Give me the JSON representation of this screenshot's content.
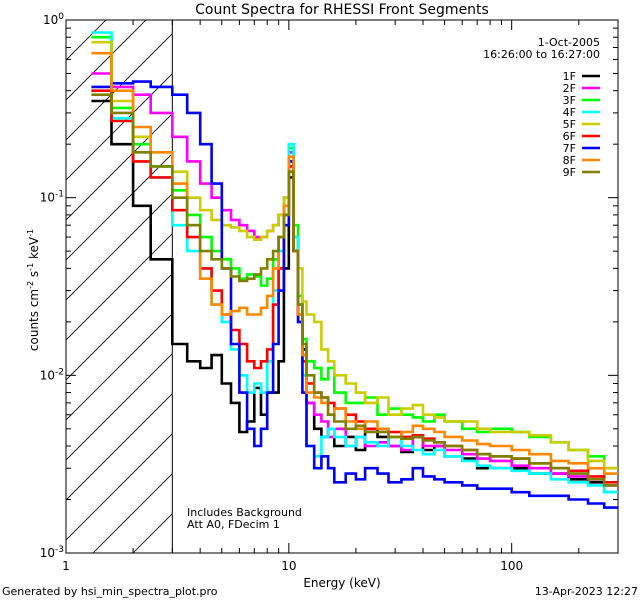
{
  "chart_data": {
    "type": "line",
    "title": "Count Spectra for RHESSI Front Segments",
    "xlabel": "Energy (keV)",
    "ylabel": {
      "base": "counts cm",
      "exp1": "-2",
      "mid1": " s",
      "exp2": "-1",
      "mid2": " keV",
      "exp3": "-1"
    },
    "x_scale": "log",
    "y_scale": "log",
    "xlim": [
      1.0,
      300
    ],
    "ylim": [
      0.001,
      1.0
    ],
    "x_tick_labels": [
      {
        "value": 1,
        "label": "1"
      },
      {
        "value": 10,
        "label": "10"
      },
      {
        "value": 100,
        "label": "100"
      }
    ],
    "y_tick_labels": [
      {
        "value": 1,
        "base": "10",
        "exp": "0"
      },
      {
        "value": 0.1,
        "base": "10",
        "exp": "-1"
      },
      {
        "value": 0.01,
        "base": "10",
        "exp": "-2"
      },
      {
        "value": 0.001,
        "base": "10",
        "exp": "-3"
      }
    ],
    "attenuator_cutoff_keV": 3.0,
    "legend_position": "top-right",
    "legend_header": [
      "1-Oct-2005",
      "16:26:00 to 16:27:00"
    ],
    "annotations": [
      "Includes Background",
      "Att A0, FDecim 1"
    ],
    "footer_left": "Generated by hsi_min_spectra_plot.pro",
    "footer_right": "13-Apr-2023 12:27",
    "bin_edges_keV": [
      1.3,
      1.6,
      2.0,
      2.4,
      3.0,
      3.5,
      4.0,
      4.5,
      5.0,
      5.5,
      6.0,
      6.5,
      7.0,
      7.5,
      8.0,
      8.5,
      9.0,
      9.5,
      10.0,
      10.5,
      11.0,
      11.5,
      12.0,
      13.0,
      14.0,
      15.0,
      16.0,
      18.0,
      20.0,
      22.0,
      25.0,
      28.0,
      32.0,
      36.0,
      40.0,
      45.0,
      50.0,
      60.0,
      70.0,
      80.0,
      100.0,
      120.0,
      150.0,
      180.0,
      220.0,
      260.0,
      300.0
    ],
    "series": [
      {
        "name": "1F",
        "color": "#000000",
        "values": [
          0.35,
          0.2,
          0.09,
          0.045,
          0.015,
          0.012,
          0.011,
          0.013,
          0.009,
          0.007,
          0.0048,
          0.0055,
          0.0085,
          0.006,
          0.008,
          0.008,
          0.012,
          0.04,
          0.13,
          0.05,
          0.022,
          0.014,
          0.007,
          0.005,
          0.0045,
          0.005,
          0.004,
          0.0045,
          0.0038,
          0.005,
          0.0045,
          0.004,
          0.0037,
          0.0045,
          0.0038,
          0.004,
          0.0035,
          0.0034,
          0.003,
          0.003,
          0.003,
          0.0028,
          0.0028,
          0.0026,
          0.0025,
          0.0022
        ]
      },
      {
        "name": "2F",
        "color": "#ff00ff",
        "values": [
          0.5,
          0.42,
          0.38,
          0.3,
          0.22,
          0.16,
          0.12,
          0.1,
          0.085,
          0.075,
          0.07,
          0.065,
          0.06,
          0.06,
          0.065,
          0.07,
          0.08,
          0.1,
          0.18,
          0.06,
          0.025,
          0.013,
          0.007,
          0.006,
          0.0055,
          0.0045,
          0.005,
          0.004,
          0.0045,
          0.004,
          0.0042,
          0.004,
          0.0038,
          0.0045,
          0.004,
          0.004,
          0.0038,
          0.0036,
          0.0034,
          0.0033,
          0.0031,
          0.003,
          0.0028,
          0.0027,
          0.0026,
          0.0024
        ]
      },
      {
        "name": "3F",
        "color": "#00ff00",
        "values": [
          0.8,
          0.32,
          0.2,
          0.15,
          0.11,
          0.08,
          0.06,
          0.05,
          0.045,
          0.04,
          0.035,
          0.037,
          0.036,
          0.032,
          0.035,
          0.045,
          0.06,
          0.1,
          0.19,
          0.07,
          0.028,
          0.016,
          0.012,
          0.011,
          0.0095,
          0.011,
          0.008,
          0.007,
          0.007,
          0.0075,
          0.006,
          0.0065,
          0.006,
          0.0058,
          0.0055,
          0.006,
          0.0055,
          0.005,
          0.0048,
          0.005,
          0.0048,
          0.0045,
          0.0042,
          0.0038,
          0.0035,
          0.003
        ]
      },
      {
        "name": "4F",
        "color": "#00ffff",
        "values": [
          0.85,
          0.28,
          0.18,
          0.13,
          0.07,
          0.05,
          0.04,
          0.025,
          0.02,
          0.014,
          0.01,
          0.008,
          0.009,
          0.008,
          0.012,
          0.03,
          0.05,
          0.09,
          0.2,
          0.06,
          0.025,
          0.01,
          0.004,
          0.0035,
          0.0045,
          0.005,
          0.0045,
          0.004,
          0.0045,
          0.0042,
          0.004,
          0.0045,
          0.004,
          0.0038,
          0.0036,
          0.0038,
          0.0035,
          0.0033,
          0.0031,
          0.003,
          0.0029,
          0.0028,
          0.0026,
          0.0025,
          0.0024,
          0.0022
        ]
      },
      {
        "name": "5F",
        "color": "#cccc00",
        "values": [
          0.75,
          0.35,
          0.22,
          0.18,
          0.14,
          0.1,
          0.085,
          0.075,
          0.07,
          0.068,
          0.065,
          0.06,
          0.058,
          0.06,
          0.065,
          0.07,
          0.08,
          0.1,
          0.16,
          0.05,
          0.04,
          0.026,
          0.022,
          0.02,
          0.014,
          0.012,
          0.01,
          0.009,
          0.008,
          0.007,
          0.0075,
          0.006,
          0.0065,
          0.0068,
          0.006,
          0.0058,
          0.0055,
          0.0055,
          0.005,
          0.0048,
          0.0048,
          0.0046,
          0.0042,
          0.0038,
          0.0033,
          0.003
        ]
      },
      {
        "name": "6F",
        "color": "#ff0000",
        "values": [
          0.4,
          0.27,
          0.16,
          0.13,
          0.085,
          0.06,
          0.04,
          0.03,
          0.022,
          0.018,
          0.015,
          0.012,
          0.011,
          0.012,
          0.014,
          0.025,
          0.04,
          0.08,
          0.15,
          0.05,
          0.02,
          0.012,
          0.009,
          0.008,
          0.0075,
          0.007,
          0.0065,
          0.006,
          0.0055,
          0.005,
          0.005,
          0.0048,
          0.0045,
          0.0046,
          0.0044,
          0.0042,
          0.004,
          0.0038,
          0.0036,
          0.0035,
          0.0034,
          0.0032,
          0.003,
          0.0029,
          0.0027,
          0.0025
        ]
      },
      {
        "name": "7F",
        "color": "#0000ff",
        "values": [
          0.42,
          0.44,
          0.45,
          0.42,
          0.38,
          0.3,
          0.2,
          0.12,
          0.04,
          0.015,
          0.008,
          0.005,
          0.004,
          0.005,
          0.008,
          0.015,
          0.03,
          0.07,
          0.16,
          0.05,
          0.02,
          0.008,
          0.004,
          0.003,
          0.0035,
          0.003,
          0.0025,
          0.0028,
          0.0026,
          0.003,
          0.0028,
          0.0025,
          0.0026,
          0.003,
          0.0027,
          0.0026,
          0.0025,
          0.0024,
          0.0023,
          0.0023,
          0.0022,
          0.0021,
          0.0021,
          0.002,
          0.0019,
          0.0018
        ]
      },
      {
        "name": "8F",
        "color": "#ff8800",
        "values": [
          0.65,
          0.4,
          0.25,
          0.18,
          0.12,
          0.07,
          0.035,
          0.025,
          0.022,
          0.023,
          0.024,
          0.022,
          0.022,
          0.024,
          0.028,
          0.04,
          0.06,
          0.09,
          0.17,
          0.05,
          0.022,
          0.013,
          0.008,
          0.0075,
          0.007,
          0.006,
          0.0065,
          0.0055,
          0.005,
          0.0055,
          0.005,
          0.0045,
          0.0048,
          0.0052,
          0.005,
          0.0048,
          0.0045,
          0.0043,
          0.0041,
          0.004,
          0.0038,
          0.0036,
          0.0033,
          0.0032,
          0.003,
          0.0028
        ]
      },
      {
        "name": "9F",
        "color": "#808000",
        "values": [
          0.38,
          0.3,
          0.18,
          0.15,
          0.1,
          0.07,
          0.05,
          0.045,
          0.04,
          0.036,
          0.034,
          0.035,
          0.037,
          0.04,
          0.045,
          0.05,
          0.06,
          0.08,
          0.14,
          0.05,
          0.025,
          0.015,
          0.01,
          0.008,
          0.0075,
          0.006,
          0.0055,
          0.005,
          0.0052,
          0.0048,
          0.0048,
          0.0045,
          0.0044,
          0.0045,
          0.0043,
          0.0042,
          0.004,
          0.0038,
          0.0036,
          0.0035,
          0.0034,
          0.0032,
          0.003,
          0.0028,
          0.0026,
          0.0024
        ]
      }
    ]
  }
}
